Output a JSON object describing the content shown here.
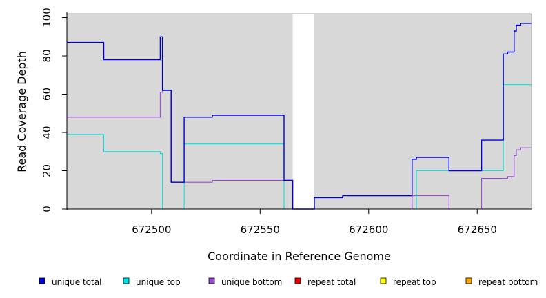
{
  "chart_data": {
    "type": "line",
    "step": true,
    "xlabel": "Coordinate in Reference Genome",
    "ylabel": "Read Coverage Depth",
    "xlim": [
      672461,
      672675
    ],
    "ylim": [
      0,
      102
    ],
    "x_ticks": [
      672500,
      672550,
      672600,
      672650
    ],
    "y_ticks": [
      0,
      20,
      40,
      60,
      80,
      100
    ],
    "background_color": "#d8d8d8",
    "gap_region": [
      672565,
      672575
    ],
    "legend_position": "bottom",
    "series": [
      {
        "name": "unique total",
        "color": "#0000dd",
        "x": [
          672461,
          672478,
          672504,
          672505,
          672509,
          672515,
          672528,
          672561,
          672565,
          672575,
          672588,
          672620,
          672622,
          672637,
          672652,
          672662,
          672664,
          672667,
          672668,
          672670,
          672675
        ],
        "y": [
          87,
          78,
          90,
          62,
          14,
          48,
          49,
          15,
          0,
          6,
          7,
          26,
          27,
          20,
          36,
          81,
          82,
          93,
          96,
          97,
          97
        ]
      },
      {
        "name": "unique top",
        "color": "#00e5e5",
        "x": [
          672461,
          672478,
          672504,
          672505,
          672515,
          672561,
          672565,
          672575,
          672620,
          672622,
          672662,
          672675
        ],
        "y": [
          39,
          30,
          29,
          0,
          34,
          0,
          0,
          0,
          0,
          20,
          65,
          65
        ]
      },
      {
        "name": "unique bottom",
        "color": "#a347e0",
        "x": [
          672461,
          672504,
          672505,
          672509,
          672528,
          672561,
          672565,
          672575,
          672620,
          672637,
          672652,
          672664,
          672667,
          672668,
          672670,
          672675
        ],
        "y": [
          48,
          61,
          62,
          14,
          15,
          15,
          0,
          0,
          7,
          0,
          16,
          17,
          28,
          31,
          32,
          32
        ]
      },
      {
        "name": "repeat total",
        "color": "#ee0000",
        "x": [
          672461,
          672675
        ],
        "y": [
          0,
          0
        ]
      },
      {
        "name": "repeat top",
        "color": "#ffff00",
        "x": [
          672461,
          672675
        ],
        "y": [
          0,
          0
        ]
      },
      {
        "name": "repeat bottom",
        "color": "#ffa500",
        "x": [
          672461,
          672675
        ],
        "y": [
          0,
          0
        ]
      }
    ]
  }
}
